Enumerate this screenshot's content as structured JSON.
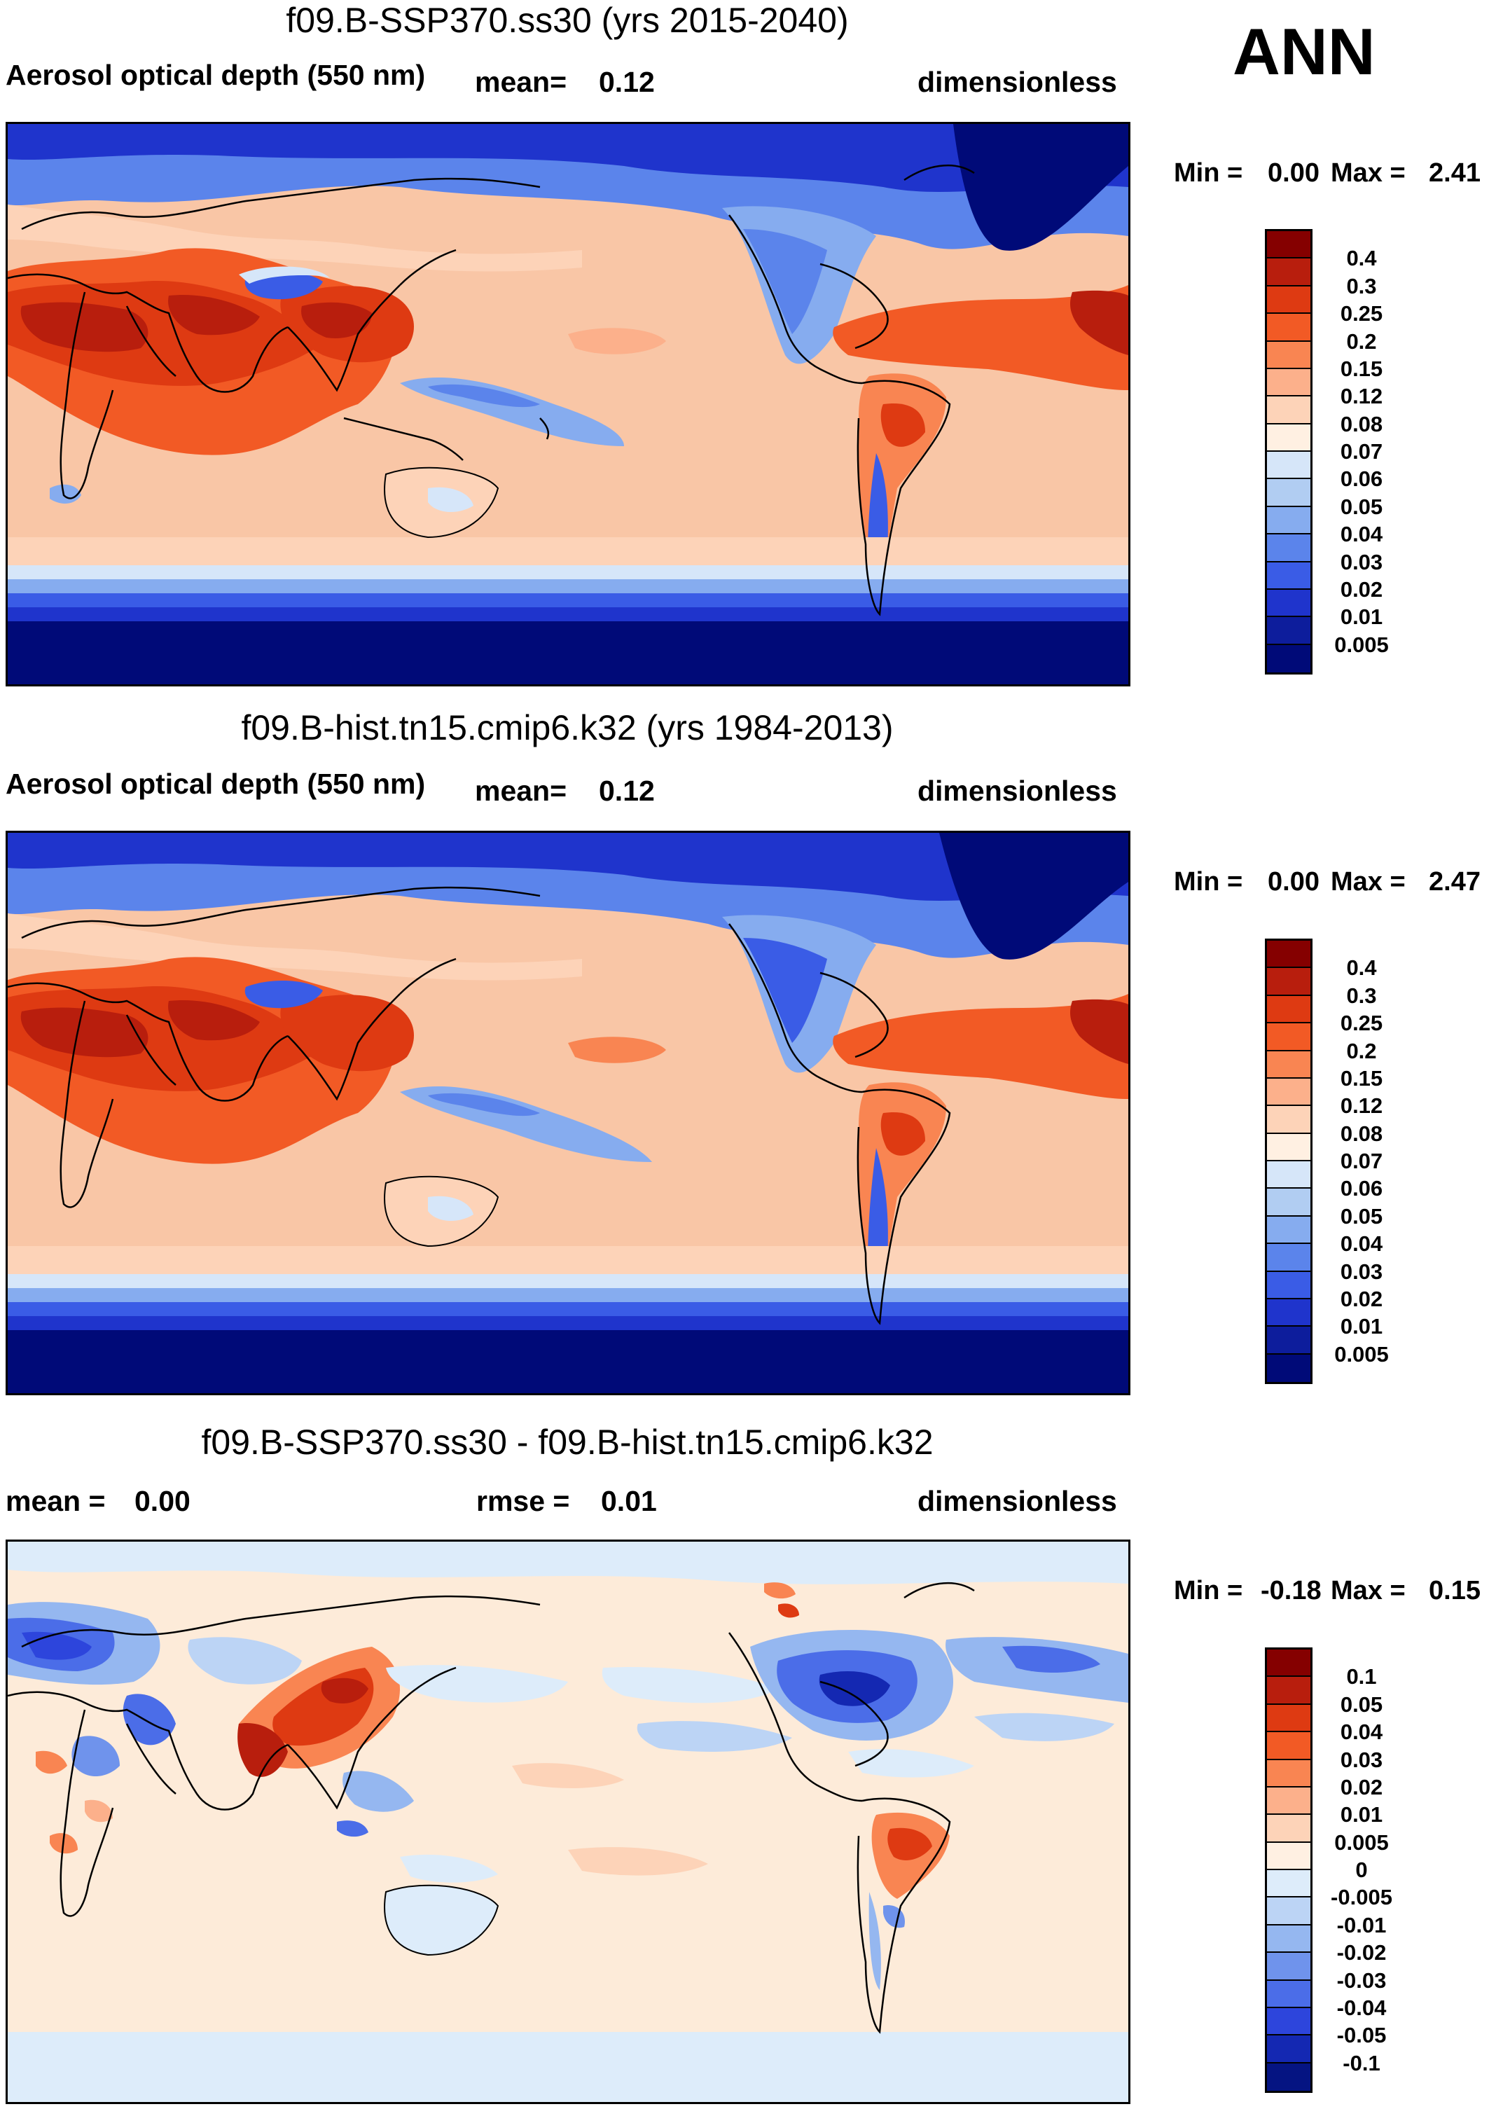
{
  "header": {
    "season": "ANN"
  },
  "colors": {
    "abs_scale": [
      "#850000",
      "#b81e0d",
      "#de3a12",
      "#f25a25",
      "#f98552",
      "#fcb08b",
      "#fdd3b8",
      "#fff0e2",
      "#d6e6f9",
      "#b1cdf2",
      "#86acef",
      "#5b84eb",
      "#3a5ce6",
      "#1f34cc",
      "#0d1d9c",
      "#000a78"
    ],
    "diff_scale": [
      "#850000",
      "#b81e0d",
      "#de3a12",
      "#f25a25",
      "#f98552",
      "#fcb08b",
      "#fdd3b8",
      "#fff0e2",
      "#ddecfa",
      "#bcd4f5",
      "#95b7f0",
      "#6f93ec",
      "#4b6de8",
      "#2d45dc",
      "#1428b2",
      "#051482"
    ]
  },
  "panels": [
    {
      "title": "f09.B-SSP370.ss30 (yrs 2015-2040)",
      "left_label": "Aerosol optical depth (550 nm)",
      "stat1_label": "mean=",
      "stat1_value": "0.12",
      "units": "dimensionless",
      "min_label": "Min =",
      "min_value": "0.00",
      "max_label": "Max =",
      "max_value": "2.41",
      "levels": [
        "0.4",
        "0.3",
        "0.25",
        "0.2",
        "0.15",
        "0.12",
        "0.08",
        "0.07",
        "0.06",
        "0.05",
        "0.04",
        "0.03",
        "0.02",
        "0.01",
        "0.005"
      ]
    },
    {
      "title": "f09.B-hist.tn15.cmip6.k32 (yrs 1984-2013)",
      "left_label": "Aerosol optical depth (550 nm)",
      "stat1_label": "mean=",
      "stat1_value": "0.12",
      "units": "dimensionless",
      "min_label": "Min =",
      "min_value": "0.00",
      "max_label": "Max =",
      "max_value": "2.47",
      "levels": [
        "0.4",
        "0.3",
        "0.25",
        "0.2",
        "0.15",
        "0.12",
        "0.08",
        "0.07",
        "0.06",
        "0.05",
        "0.04",
        "0.03",
        "0.02",
        "0.01",
        "0.005"
      ]
    },
    {
      "title": "f09.B-SSP370.ss30 - f09.B-hist.tn15.cmip6.k32",
      "left_label": "mean =",
      "left_value": "0.00",
      "stat1_label": "rmse =",
      "stat1_value": "0.01",
      "units": "dimensionless",
      "min_label": "Min =",
      "min_value": "-0.18",
      "max_label": "Max =",
      "max_value": "0.15",
      "levels": [
        "0.1",
        "0.05",
        "0.04",
        "0.03",
        "0.02",
        "0.01",
        "0.005",
        "0",
        "-0.005",
        "-0.01",
        "-0.02",
        "-0.03",
        "-0.04",
        "-0.05",
        "-0.1"
      ]
    }
  ]
}
